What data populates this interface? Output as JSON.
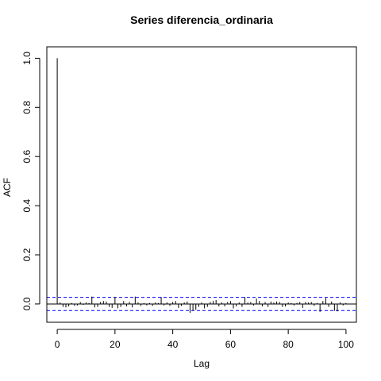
{
  "chart_data": {
    "type": "bar",
    "title": "Series  diferencia_ordinaria",
    "xlabel": "Lag",
    "ylabel": "ACF",
    "xlim": [
      -3.6,
      103.6
    ],
    "ylim": [
      -0.0745,
      1.0465
    ],
    "x_ticks": [
      0,
      20,
      40,
      60,
      80,
      100
    ],
    "y_ticks": [
      0.0,
      0.2,
      0.4,
      0.6,
      0.8,
      1.0
    ],
    "y_tick_labels": [
      "0.0",
      "0.2",
      "0.4",
      "0.6",
      "0.8",
      "1.0"
    ],
    "confidence_bounds": [
      0.027,
      -0.027
    ],
    "confidence_color": "#0000ff",
    "lags": [
      0,
      1,
      2,
      3,
      4,
      5,
      6,
      7,
      8,
      9,
      10,
      11,
      12,
      13,
      14,
      15,
      16,
      17,
      18,
      19,
      20,
      21,
      22,
      23,
      24,
      25,
      26,
      27,
      28,
      29,
      30,
      31,
      32,
      33,
      34,
      35,
      36,
      37,
      38,
      39,
      40,
      41,
      42,
      43,
      44,
      45,
      46,
      47,
      48,
      49,
      50,
      51,
      52,
      53,
      54,
      55,
      56,
      57,
      58,
      59,
      60,
      61,
      62,
      63,
      64,
      65,
      66,
      67,
      68,
      69,
      70,
      71,
      72,
      73,
      74,
      75,
      76,
      77,
      78,
      79,
      80,
      81,
      82,
      83,
      84,
      85,
      86,
      87,
      88,
      89,
      90,
      91,
      92,
      93,
      94,
      95,
      96,
      97,
      98,
      99,
      100
    ],
    "acf": [
      1.0,
      0.006,
      -0.012,
      -0.014,
      -0.01,
      0.004,
      -0.008,
      -0.006,
      0.008,
      -0.004,
      0.006,
      0.004,
      0.03,
      -0.014,
      -0.012,
      0.008,
      0.012,
      0.01,
      -0.012,
      -0.016,
      0.028,
      -0.018,
      -0.012,
      0.012,
      -0.01,
      0.008,
      -0.014,
      0.03,
      0.006,
      -0.008,
      0.004,
      -0.006,
      0.004,
      -0.008,
      0.006,
      0.004,
      0.028,
      -0.006,
      0.006,
      -0.008,
      0.008,
      0.012,
      -0.016,
      -0.008,
      0.006,
      0.01,
      -0.036,
      -0.028,
      -0.024,
      -0.012,
      0.006,
      -0.018,
      -0.012,
      0.008,
      0.012,
      0.016,
      -0.01,
      0.006,
      -0.01,
      0.008,
      0.012,
      -0.018,
      -0.01,
      0.006,
      -0.012,
      0.028,
      0.006,
      0.008,
      -0.006,
      0.022,
      0.012,
      -0.01,
      0.008,
      -0.012,
      0.01,
      0.006,
      0.01,
      0.008,
      -0.012,
      -0.01,
      0.006,
      0.004,
      -0.006,
      0.004,
      0.008,
      -0.016,
      0.008,
      0.006,
      0.008,
      -0.008,
      0.004,
      -0.032,
      0.012,
      0.024,
      -0.012,
      0.01,
      -0.028,
      -0.03,
      0.006,
      -0.006,
      0.004
    ]
  }
}
